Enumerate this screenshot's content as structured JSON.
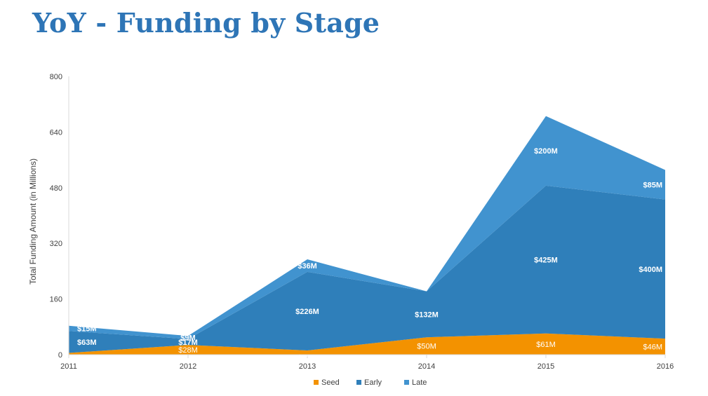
{
  "title": "YoY - Funding by Stage",
  "chart_data": {
    "type": "area",
    "stacked": true,
    "title": "YoY - Funding by Stage",
    "xlabel": "",
    "ylabel": "Total Funding Amount (in Millions)",
    "x": [
      "2011",
      "2012",
      "2013",
      "2014",
      "2015",
      "2016"
    ],
    "ylim": [
      0,
      800
    ],
    "yticks": [
      0,
      160,
      320,
      480,
      640,
      800
    ],
    "grid": false,
    "legend": "bottom",
    "series": [
      {
        "name": "Seed",
        "color": "#f39200",
        "values": [
          5,
          28,
          12,
          50,
          61,
          46
        ],
        "labels": [
          "$5M",
          "$28M",
          "$12M",
          "$50M",
          "$61M",
          "$46M"
        ]
      },
      {
        "name": "Early",
        "color": "#2f7fba",
        "values": [
          63,
          17,
          226,
          132,
          425,
          400
        ],
        "labels": [
          "$63M",
          "$17M",
          "$226M",
          "$132M",
          "$425M",
          "$400M"
        ]
      },
      {
        "name": "Late",
        "color": "#4193cf",
        "values": [
          15,
          9,
          36,
          0,
          200,
          85
        ],
        "labels": [
          "$15M",
          "$9M",
          "$36M",
          "",
          "$200M",
          "$85M"
        ]
      }
    ]
  }
}
